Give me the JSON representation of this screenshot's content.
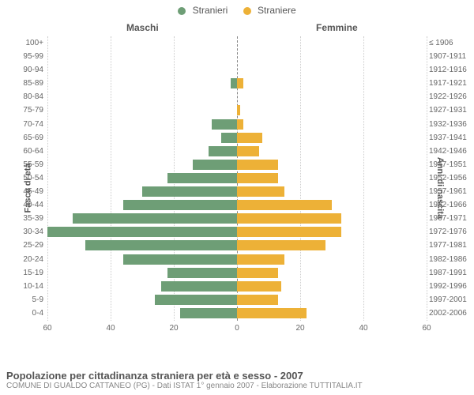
{
  "legend": {
    "male": {
      "label": "Stranieri",
      "color": "#6e9e76"
    },
    "female": {
      "label": "Straniere",
      "color": "#edb137"
    }
  },
  "chart": {
    "type": "population-pyramid",
    "header_male": "Maschi",
    "header_female": "Femmine",
    "axis_left": "Fasce di età",
    "axis_right": "Anni di nascita",
    "xlim": 60,
    "x_ticks_left": [
      60,
      40,
      20,
      0
    ],
    "x_ticks_right": [
      0,
      20,
      40,
      60
    ],
    "background_color": "#ffffff",
    "grid_color": "#cccccc",
    "bar_color_male": "#6e9e76",
    "bar_color_female": "#edb137",
    "rows": [
      {
        "age": "100+",
        "birth": "≤ 1906",
        "m": 0,
        "f": 0
      },
      {
        "age": "95-99",
        "birth": "1907-1911",
        "m": 0,
        "f": 0
      },
      {
        "age": "90-94",
        "birth": "1912-1916",
        "m": 0,
        "f": 0
      },
      {
        "age": "85-89",
        "birth": "1917-1921",
        "m": 2,
        "f": 2
      },
      {
        "age": "80-84",
        "birth": "1922-1926",
        "m": 0,
        "f": 0
      },
      {
        "age": "75-79",
        "birth": "1927-1931",
        "m": 0,
        "f": 1
      },
      {
        "age": "70-74",
        "birth": "1932-1936",
        "m": 8,
        "f": 2
      },
      {
        "age": "65-69",
        "birth": "1937-1941",
        "m": 5,
        "f": 8
      },
      {
        "age": "60-64",
        "birth": "1942-1946",
        "m": 9,
        "f": 7
      },
      {
        "age": "55-59",
        "birth": "1947-1951",
        "m": 14,
        "f": 13
      },
      {
        "age": "50-54",
        "birth": "1952-1956",
        "m": 22,
        "f": 13
      },
      {
        "age": "45-49",
        "birth": "1957-1961",
        "m": 30,
        "f": 15
      },
      {
        "age": "40-44",
        "birth": "1962-1966",
        "m": 36,
        "f": 30
      },
      {
        "age": "35-39",
        "birth": "1967-1971",
        "m": 52,
        "f": 33
      },
      {
        "age": "30-34",
        "birth": "1972-1976",
        "m": 60,
        "f": 33
      },
      {
        "age": "25-29",
        "birth": "1977-1981",
        "m": 48,
        "f": 28
      },
      {
        "age": "20-24",
        "birth": "1982-1986",
        "m": 36,
        "f": 15
      },
      {
        "age": "15-19",
        "birth": "1987-1991",
        "m": 22,
        "f": 13
      },
      {
        "age": "10-14",
        "birth": "1992-1996",
        "m": 24,
        "f": 14
      },
      {
        "age": "5-9",
        "birth": "1997-2001",
        "m": 26,
        "f": 13
      },
      {
        "age": "0-4",
        "birth": "2002-2006",
        "m": 18,
        "f": 22
      }
    ]
  },
  "footer": {
    "title": "Popolazione per cittadinanza straniera per età e sesso - 2007",
    "subtitle": "COMUNE DI GUALDO CATTANEO (PG) - Dati ISTAT 1° gennaio 2007 - Elaborazione TUTTITALIA.IT"
  }
}
